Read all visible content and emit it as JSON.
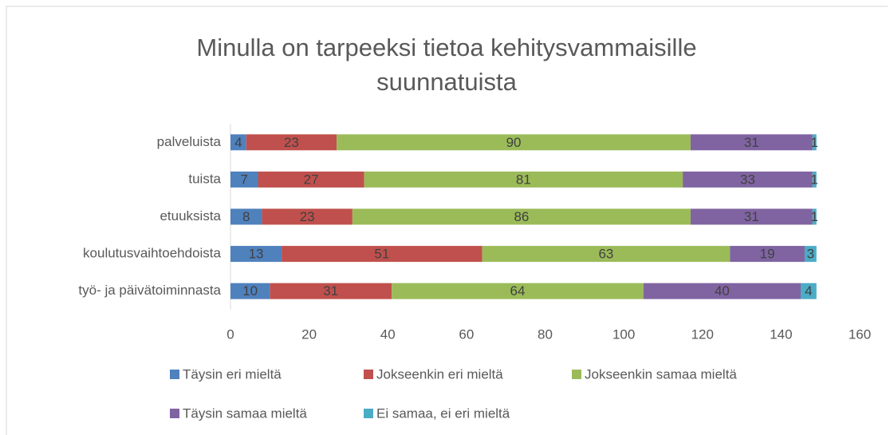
{
  "chart_data": {
    "type": "stacked_bar_horizontal",
    "title": "Minulla on tarpeeksi tietoa kehitysvammaisille suunnatuista",
    "categories": [
      "palveluista",
      "tuista",
      "etuuksista",
      "koulutusvaihtoehdoista",
      "työ- ja päivätoiminnasta"
    ],
    "series": [
      {
        "name": "Täysin eri mieltä",
        "color": "#4f81bd",
        "values": [
          4,
          7,
          8,
          13,
          10
        ]
      },
      {
        "name": "Jokseenkin eri mieltä",
        "color": "#c0504d",
        "values": [
          23,
          27,
          23,
          51,
          31
        ]
      },
      {
        "name": "Jokseenkin samaa mieltä",
        "color": "#9bbb59",
        "values": [
          90,
          81,
          86,
          63,
          64
        ]
      },
      {
        "name": "Täysin samaa mieltä",
        "color": "#8064a2",
        "values": [
          31,
          33,
          31,
          19,
          40
        ]
      },
      {
        "name": "Ei samaa, ei eri mieltä",
        "color": "#4bacc6",
        "values": [
          1,
          1,
          1,
          3,
          4
        ]
      }
    ],
    "xlim": [
      0,
      160
    ],
    "xticks": [
      0,
      20,
      40,
      60,
      80,
      100,
      120,
      140,
      160
    ],
    "grid": false,
    "legend": "bottom"
  }
}
